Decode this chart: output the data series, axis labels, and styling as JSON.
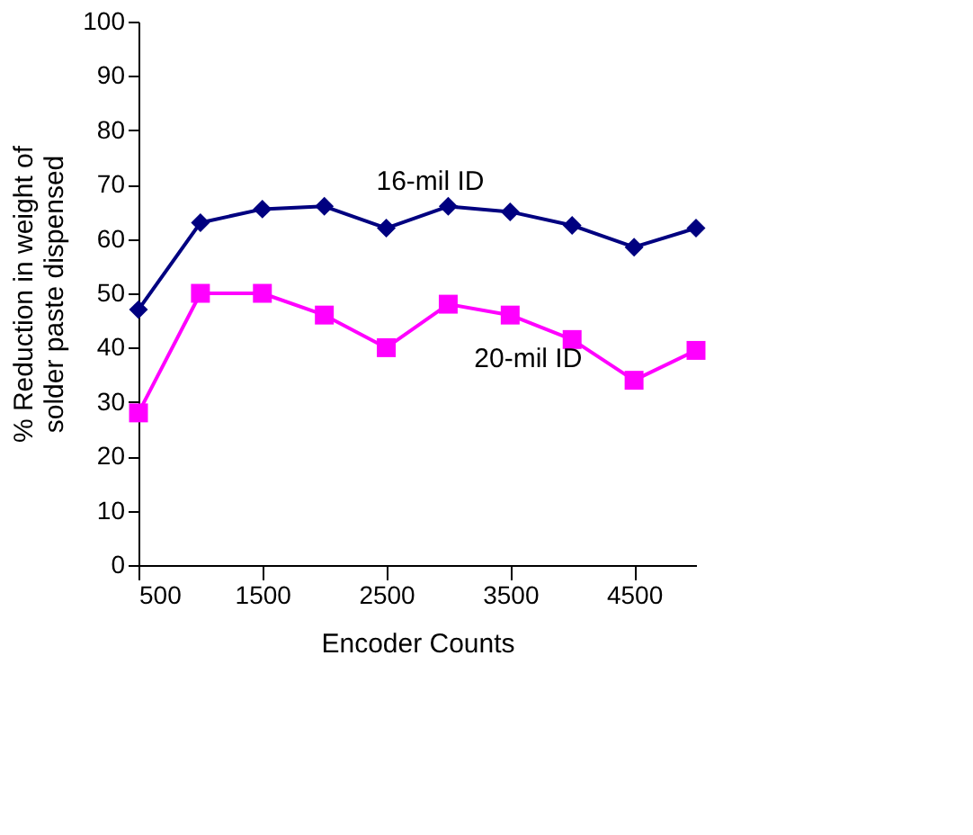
{
  "chart_data": {
    "type": "line",
    "xlabel": "Encoder Counts",
    "ylabel": "% Reduction in weight of solder paste dispensed",
    "x": [
      500,
      1000,
      1500,
      2000,
      2500,
      3000,
      3500,
      4000,
      4500,
      5000
    ],
    "series": [
      {
        "name": "16-mil ID",
        "color": "#000080",
        "marker": "diamond",
        "values": [
          47,
          63,
          65.5,
          66,
          62,
          66,
          65,
          62.5,
          58.5,
          62
        ]
      },
      {
        "name": "20-mil ID",
        "color": "#ff00ff",
        "marker": "square",
        "values": [
          28,
          50,
          50,
          46,
          40,
          48,
          46,
          41.5,
          34,
          39.5
        ]
      }
    ],
    "xlim": [
      500,
      5000
    ],
    "xticks": [
      500,
      1500,
      2500,
      3500,
      4500
    ],
    "ylim": [
      0,
      100
    ],
    "yticks": [
      0,
      10,
      20,
      30,
      40,
      50,
      60,
      70,
      80,
      90,
      100
    ],
    "grid": false,
    "line_style": "solid"
  }
}
